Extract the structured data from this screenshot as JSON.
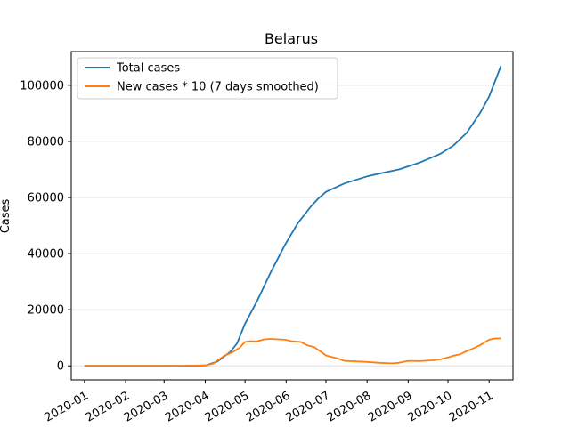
{
  "chart_data": {
    "type": "line",
    "title": "Belarus",
    "xlabel": "",
    "ylabel": "Cases",
    "x_ticks": [
      "2020-01",
      "2020-02",
      "2020-03",
      "2020-04",
      "2020-05",
      "2020-06",
      "2020-07",
      "2020-08",
      "2020-09",
      "2020-10",
      "2020-11"
    ],
    "y_ticks": [
      "0",
      "20000",
      "40000",
      "60000",
      "80000",
      "100000"
    ],
    "ylim": [
      -5000,
      112000
    ],
    "xlim": [
      "2019-12-22",
      "2020-11-19"
    ],
    "grid": "horizontal",
    "legend_position": "top-left",
    "series": [
      {
        "name": "Total cases",
        "color": "#1f77b4",
        "points": [
          [
            "2020-01-01",
            0
          ],
          [
            "2020-02-01",
            0
          ],
          [
            "2020-03-01",
            0
          ],
          [
            "2020-03-15",
            30
          ],
          [
            "2020-04-01",
            150
          ],
          [
            "2020-04-10",
            1500
          ],
          [
            "2020-04-20",
            5000
          ],
          [
            "2020-04-25",
            8000
          ],
          [
            "2020-05-01",
            15000
          ],
          [
            "2020-05-10",
            23000
          ],
          [
            "2020-05-20",
            33000
          ],
          [
            "2020-05-31",
            43000
          ],
          [
            "2020-06-10",
            51000
          ],
          [
            "2020-06-20",
            57000
          ],
          [
            "2020-06-25",
            59500
          ],
          [
            "2020-07-01",
            62000
          ],
          [
            "2020-07-15",
            65000
          ],
          [
            "2020-08-01",
            67500
          ],
          [
            "2020-08-15",
            69000
          ],
          [
            "2020-08-25",
            70000
          ],
          [
            "2020-09-10",
            72500
          ],
          [
            "2020-09-25",
            75500
          ],
          [
            "2020-10-05",
            78500
          ],
          [
            "2020-10-15",
            83000
          ],
          [
            "2020-10-25",
            90000
          ],
          [
            "2020-11-01",
            96000
          ],
          [
            "2020-11-10",
            107000
          ]
        ]
      },
      {
        "name": "New cases * 10 (7 days smoothed)",
        "color": "#ff7f0e",
        "points": [
          [
            "2020-01-01",
            0
          ],
          [
            "2020-02-01",
            0
          ],
          [
            "2020-03-01",
            0
          ],
          [
            "2020-03-15",
            50
          ],
          [
            "2020-04-01",
            200
          ],
          [
            "2020-04-07",
            800
          ],
          [
            "2020-04-15",
            3500
          ],
          [
            "2020-04-22",
            5000
          ],
          [
            "2020-04-27",
            6500
          ],
          [
            "2020-05-01",
            8500
          ],
          [
            "2020-05-05",
            8800
          ],
          [
            "2020-05-10",
            8700
          ],
          [
            "2020-05-15",
            9400
          ],
          [
            "2020-05-20",
            9600
          ],
          [
            "2020-05-31",
            9300
          ],
          [
            "2020-06-05",
            8800
          ],
          [
            "2020-06-12",
            8500
          ],
          [
            "2020-06-17",
            7300
          ],
          [
            "2020-06-22",
            6700
          ],
          [
            "2020-06-27",
            5100
          ],
          [
            "2020-07-01",
            3700
          ],
          [
            "2020-07-10",
            2600
          ],
          [
            "2020-07-15",
            1800
          ],
          [
            "2020-08-01",
            1400
          ],
          [
            "2020-08-10",
            1100
          ],
          [
            "2020-08-20",
            900
          ],
          [
            "2020-08-25",
            1100
          ],
          [
            "2020-09-01",
            1800
          ],
          [
            "2020-09-10",
            1700
          ],
          [
            "2020-09-20",
            2000
          ],
          [
            "2020-09-25",
            2300
          ],
          [
            "2020-10-01",
            3000
          ],
          [
            "2020-10-05",
            3600
          ],
          [
            "2020-10-10",
            4100
          ],
          [
            "2020-10-15",
            5200
          ],
          [
            "2020-10-20",
            6200
          ],
          [
            "2020-10-25",
            7300
          ],
          [
            "2020-11-01",
            9300
          ],
          [
            "2020-11-05",
            9700
          ],
          [
            "2020-11-10",
            9800
          ]
        ]
      }
    ]
  }
}
